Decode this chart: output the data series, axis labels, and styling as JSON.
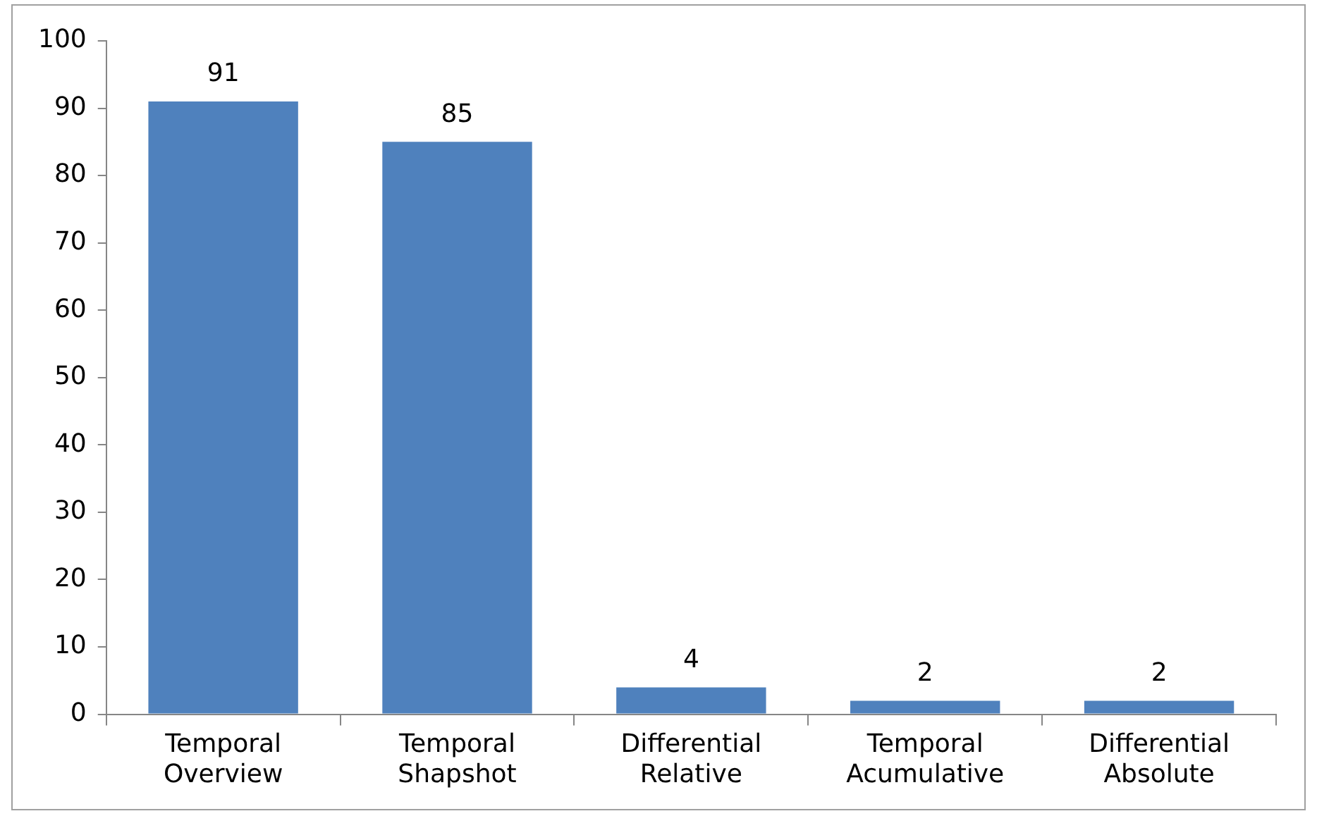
{
  "chart_data": {
    "type": "bar",
    "categories": [
      "Temporal Overview",
      "Temporal Shapshot",
      "Differential Relative",
      "Temporal Acumulative",
      "Differential Absolute"
    ],
    "values": [
      91,
      85,
      4,
      2,
      2
    ],
    "color": "#4f81bd",
    "ylim": [
      0,
      100
    ],
    "yticks": [
      0,
      10,
      20,
      30,
      40,
      50,
      60,
      70,
      80,
      90,
      100
    ],
    "grid": false,
    "legend": false,
    "data_labels": true
  }
}
